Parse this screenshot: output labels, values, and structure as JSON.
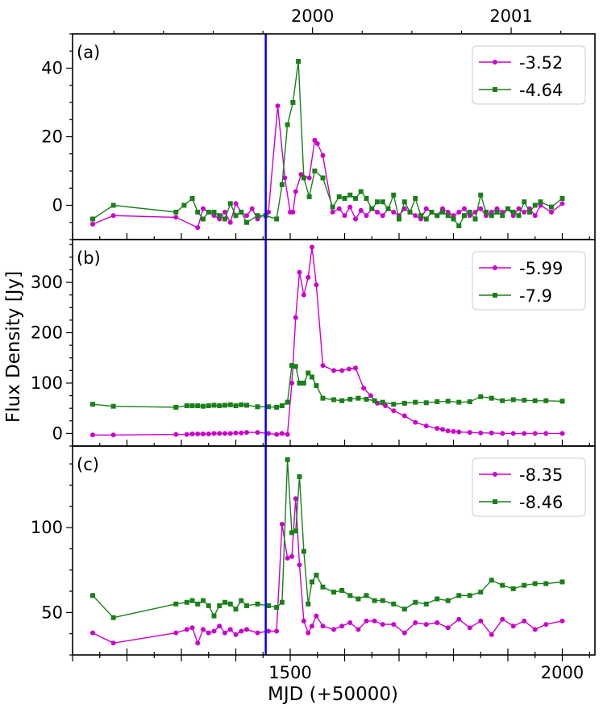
{
  "chart_data": {
    "type": "line",
    "xlabel": "MJD (+50000)",
    "ylabel": "Flux Density [Jy]",
    "xlim": [
      1100,
      2060
    ],
    "x_ticks": [
      1500,
      2000
    ],
    "top_axis_ticks": [
      {
        "x": 1541,
        "label": "2000"
      },
      {
        "x": 1906,
        "label": "2001"
      }
    ],
    "event_line_x": 1455,
    "colors": {
      "magenta": "#cc00cc",
      "green": "#1a801a",
      "event": "#0000ff"
    },
    "panels": [
      {
        "label": "(a)",
        "ylim": [
          -10,
          50
        ],
        "y_ticks": [
          0,
          20,
          40
        ],
        "legend_position": "top-right",
        "series": [
          {
            "name": "-3.52",
            "marker": "circle",
            "color": "#cc00cc",
            "x": [
              1137,
              1175,
              1290,
              1330,
              1340,
              1350,
              1360,
              1370,
              1380,
              1390,
              1400,
              1410,
              1420,
              1430,
              1440,
              1460,
              1477,
              1490,
              1500,
              1505,
              1510,
              1520,
              1535,
              1545,
              1550,
              1560,
              1578,
              1590,
              1600,
              1610,
              1620,
              1630,
              1640,
              1650,
              1660,
              1670,
              1680,
              1690,
              1700,
              1710,
              1720,
              1730,
              1740,
              1750,
              1760,
              1770,
              1780,
              1790,
              1800,
              1810,
              1820,
              1830,
              1840,
              1850,
              1860,
              1870,
              1880,
              1890,
              1900,
              1910,
              1920,
              1930,
              1940,
              1950,
              1960,
              1980,
              2000
            ],
            "values": [
              -5.5,
              -3,
              -3.5,
              -6.5,
              -1,
              -2,
              -3,
              -4,
              -2,
              -5,
              0.5,
              -2,
              -3,
              -1,
              -4,
              -2,
              29,
              8,
              -2,
              -2,
              4,
              9,
              8,
              19,
              18,
              14.5,
              -2,
              -1,
              -3,
              -0.5,
              -4,
              -1.5,
              -3,
              -1,
              -2,
              -3,
              -1,
              -2,
              -3,
              -1,
              -2,
              -3,
              -4,
              -1,
              -2,
              -3,
              -1,
              -2,
              -3,
              -2,
              -1,
              -3,
              -2,
              -1,
              -3,
              -2,
              -1,
              -2,
              -1,
              -3,
              -1,
              -2,
              -1,
              -3,
              0,
              -2,
              0.5
            ]
          },
          {
            "name": "-4.64",
            "marker": "square",
            "color": "#1a801a",
            "x": [
              1137,
              1175,
              1290,
              1305,
              1320,
              1330,
              1340,
              1350,
              1360,
              1370,
              1380,
              1390,
              1400,
              1410,
              1420,
              1440,
              1455,
              1475,
              1485,
              1495,
              1505,
              1515,
              1525,
              1535,
              1545,
              1560,
              1578,
              1590,
              1600,
              1610,
              1620,
              1630,
              1640,
              1650,
              1660,
              1670,
              1680,
              1690,
              1700,
              1710,
              1720,
              1730,
              1740,
              1750,
              1760,
              1770,
              1780,
              1790,
              1800,
              1810,
              1820,
              1830,
              1840,
              1850,
              1860,
              1870,
              1880,
              1890,
              1900,
              1910,
              1920,
              1930,
              1940,
              1950,
              1960,
              1980,
              2000
            ],
            "values": [
              -4,
              0,
              -2,
              0,
              2,
              -2,
              -4,
              -2,
              -2,
              -3,
              -4,
              0.5,
              -3,
              -2,
              -5,
              -3,
              -3,
              -4,
              6,
              23.5,
              30,
              42,
              8,
              2.5,
              10,
              8,
              -0.5,
              2.5,
              2,
              3,
              2,
              4,
              2,
              -1,
              1,
              1,
              -1,
              3,
              -4,
              1,
              -2,
              2,
              -3,
              -4,
              -2,
              -3,
              -2,
              -3,
              -4,
              -6,
              -3,
              -2,
              -4,
              3,
              -2,
              -3,
              -2,
              -3,
              -1,
              -2,
              -3,
              1,
              -2,
              0,
              1,
              -0.5,
              2
            ]
          }
        ]
      },
      {
        "label": "(b)",
        "ylim": [
          -25,
          385
        ],
        "y_ticks": [
          0,
          100,
          200,
          300
        ],
        "legend_position": "top-right",
        "series": [
          {
            "name": "-5.99",
            "marker": "circle",
            "color": "#cc00cc",
            "x": [
              1137,
              1175,
              1290,
              1310,
              1320,
              1330,
              1340,
              1350,
              1360,
              1370,
              1380,
              1390,
              1400,
              1410,
              1420,
              1440,
              1460,
              1475,
              1485,
              1495,
              1503,
              1510,
              1517,
              1525,
              1533,
              1540,
              1548,
              1560,
              1580,
              1595,
              1608,
              1620,
              1635,
              1648,
              1660,
              1675,
              1690,
              1710,
              1730,
              1750,
              1770,
              1780,
              1790,
              1800,
              1810,
              1830,
              1850,
              1870,
              1890,
              1910,
              1930,
              1950,
              1970,
              2000
            ],
            "values": [
              -3,
              -3,
              -2,
              -2,
              -1,
              -1,
              -1,
              -1,
              0,
              0,
              0,
              0,
              1,
              1,
              2,
              2,
              0,
              -2,
              0,
              -2,
              100,
              230,
              320,
              275,
              310,
              370,
              295,
              135,
              125,
              125,
              128,
              130,
              90,
              75,
              60,
              55,
              45,
              35,
              22,
              15,
              10,
              8,
              5,
              4,
              3,
              2,
              1,
              1,
              0,
              0,
              0,
              0,
              0,
              0
            ]
          },
          {
            "name": "-7.9",
            "marker": "square",
            "color": "#1a801a",
            "x": [
              1137,
              1175,
              1290,
              1310,
              1320,
              1330,
              1340,
              1350,
              1360,
              1370,
              1380,
              1390,
              1400,
              1410,
              1420,
              1440,
              1460,
              1475,
              1485,
              1495,
              1503,
              1510,
              1517,
              1525,
              1533,
              1540,
              1548,
              1560,
              1580,
              1595,
              1610,
              1625,
              1640,
              1655,
              1670,
              1690,
              1710,
              1730,
              1750,
              1770,
              1790,
              1810,
              1830,
              1850,
              1870,
              1890,
              1910,
              1930,
              1950,
              1970,
              2000
            ],
            "values": [
              58,
              54,
              52,
              55,
              55,
              55,
              54,
              55,
              56,
              55,
              56,
              57,
              55,
              57,
              56,
              53,
              53,
              52,
              55,
              62,
              135,
              133,
              100,
              100,
              120,
              112,
              95,
              70,
              67,
              65,
              68,
              70,
              68,
              65,
              62,
              58,
              60,
              62,
              61,
              63,
              64,
              62,
              63,
              73,
              70,
              65,
              67,
              66,
              65,
              65,
              64
            ]
          }
        ]
      },
      {
        "label": "(c)",
        "ylim": [
          25,
          148
        ],
        "y_ticks": [
          50,
          100
        ],
        "legend_position": "top-right",
        "series": [
          {
            "name": "-8.35",
            "marker": "circle",
            "color": "#cc00cc",
            "x": [
              1137,
              1175,
              1290,
              1310,
              1320,
              1330,
              1340,
              1350,
              1360,
              1370,
              1380,
              1390,
              1400,
              1410,
              1420,
              1440,
              1460,
              1475,
              1485,
              1495,
              1503,
              1510,
              1517,
              1525,
              1533,
              1540,
              1548,
              1560,
              1580,
              1595,
              1610,
              1625,
              1640,
              1655,
              1670,
              1690,
              1710,
              1730,
              1750,
              1770,
              1790,
              1810,
              1830,
              1850,
              1870,
              1890,
              1910,
              1930,
              1950,
              1970,
              2000
            ],
            "values": [
              38,
              32,
              38,
              40,
              41,
              32,
              40,
              38,
              39,
              42,
              38,
              40,
              37,
              39,
              40,
              38,
              39,
              39,
              102,
              82,
              83,
              117,
              78,
              45,
              38,
              42,
              48,
              42,
              40,
              42,
              44,
              40,
              45,
              45,
              43,
              43,
              38,
              44,
              43,
              44,
              41,
              46,
              41,
              45,
              37,
              46,
              42,
              45,
              40,
              43,
              45
            ]
          },
          {
            "name": "-8.46",
            "marker": "square",
            "color": "#1a801a",
            "x": [
              1137,
              1175,
              1290,
              1310,
              1320,
              1330,
              1340,
              1350,
              1360,
              1370,
              1380,
              1390,
              1400,
              1410,
              1420,
              1440,
              1460,
              1475,
              1485,
              1495,
              1503,
              1510,
              1517,
              1525,
              1533,
              1540,
              1548,
              1560,
              1580,
              1595,
              1610,
              1625,
              1640,
              1655,
              1670,
              1690,
              1710,
              1730,
              1750,
              1770,
              1790,
              1810,
              1830,
              1850,
              1870,
              1890,
              1910,
              1930,
              1950,
              1970,
              2000
            ],
            "values": [
              60,
              47,
              55,
              56,
              57,
              55,
              57,
              54,
              48,
              54,
              56,
              55,
              52,
              57,
              54,
              55,
              54,
              53,
              56,
              140,
              97,
              98,
              130,
              86,
              55,
              68,
              72,
              65,
              62,
              63,
              60,
              58,
              60,
              57,
              57,
              55,
              52,
              56,
              55,
              58,
              57,
              60,
              60,
              62,
              69,
              66,
              64,
              66,
              67,
              67,
              68
            ]
          }
        ]
      }
    ]
  }
}
